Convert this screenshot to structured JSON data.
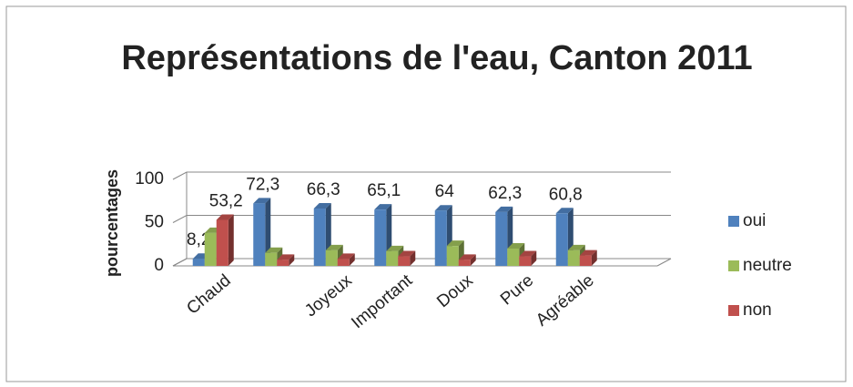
{
  "chart_data": {
    "type": "bar3d",
    "title": "Représentations de l'eau, Canton 2011",
    "y_label": "pourcentages",
    "categories": [
      "Chaud",
      null,
      "Joyeux",
      "Important",
      "Doux",
      "Pure",
      "Agréable"
    ],
    "series": [
      {
        "name": "oui",
        "color": "#4f81bd",
        "values": [
          8.2,
          72.3,
          66.3,
          65.1,
          64,
          62.3,
          60.8
        ],
        "value_labels": [
          "8,2",
          "72,3",
          "66,3",
          "65,1",
          "64",
          "62,3",
          "60,8"
        ]
      },
      {
        "name": "neutre",
        "color": "#9bbb59",
        "values": [
          38,
          15,
          18,
          17,
          23,
          20,
          18
        ]
      },
      {
        "name": "non",
        "color": "#c0504d",
        "values": [
          53.2,
          7,
          8,
          11,
          7,
          11,
          12
        ],
        "value_labels": [
          "53,2",
          null,
          null,
          null,
          null,
          null,
          null
        ]
      }
    ],
    "ylim": [
      0,
      100
    ],
    "yticks": [
      0,
      50,
      100
    ],
    "grid": true,
    "legend": "right"
  }
}
